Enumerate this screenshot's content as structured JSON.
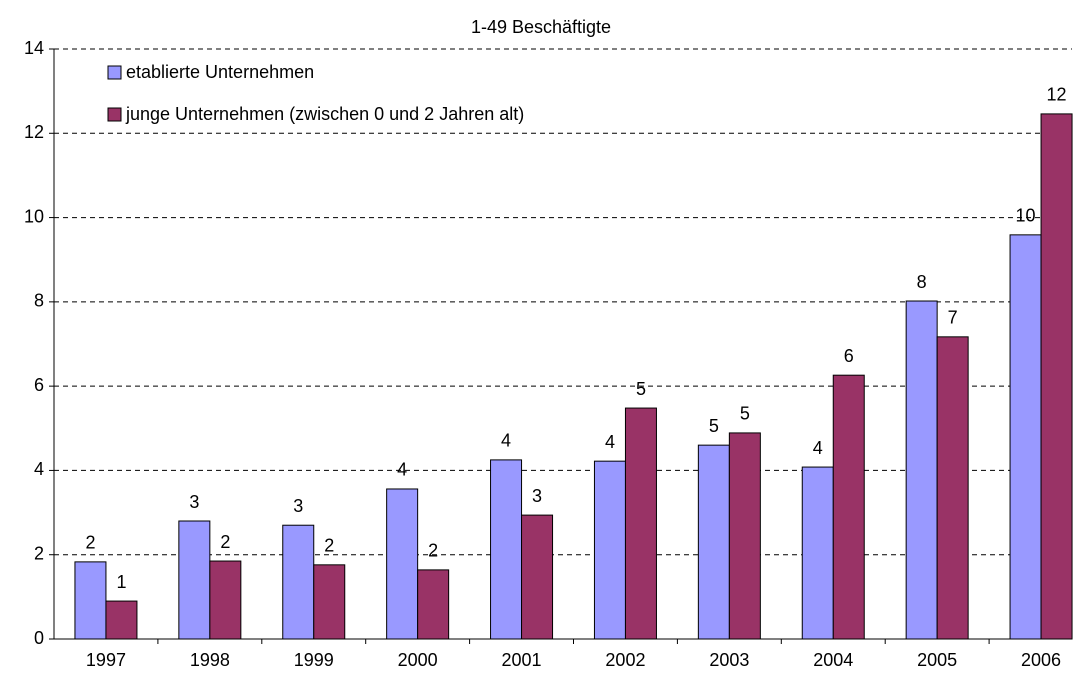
{
  "chart_data": {
    "type": "bar",
    "title": "1-49 Beschäftigte",
    "categories": [
      "1997",
      "1998",
      "1999",
      "2000",
      "2001",
      "2002",
      "2003",
      "2004",
      "2005",
      "2006"
    ],
    "series": [
      {
        "name": "etablierte Unternehmen",
        "color": "#9999ff",
        "values": [
          1.83,
          2.8,
          2.7,
          3.56,
          4.25,
          4.22,
          4.6,
          4.08,
          8.02,
          9.59
        ],
        "value_labels": [
          "2",
          "3",
          "3",
          "4",
          "4",
          "4",
          "5",
          "4",
          "8",
          "10"
        ]
      },
      {
        "name": "junge Unternehmen (zwischen 0 und 2 Jahren alt)",
        "color": "#993366",
        "values": [
          0.9,
          1.85,
          1.76,
          1.64,
          2.94,
          5.48,
          4.89,
          6.26,
          7.17,
          12.46
        ],
        "value_labels": [
          "1",
          "2",
          "2",
          "2",
          "3",
          "5",
          "5",
          "6",
          "7",
          "12"
        ]
      }
    ],
    "ylim": [
      0,
      14
    ],
    "yticks": [
      0,
      2,
      4,
      6,
      8,
      10,
      12,
      14
    ],
    "grid": true,
    "legend": "top-left"
  }
}
